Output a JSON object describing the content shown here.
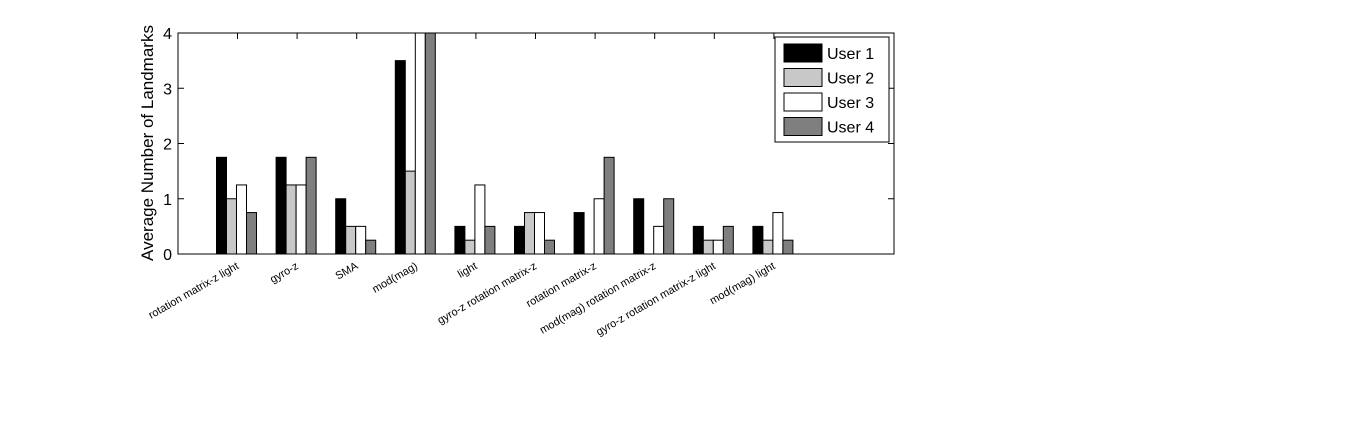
{
  "chart_data": {
    "type": "bar",
    "title": "",
    "xlabel": "",
    "ylabel": "Average Number of Landmarks",
    "ylim": [
      0,
      4
    ],
    "yticks": [
      "0",
      "1",
      "2",
      "3",
      "4"
    ],
    "grid": false,
    "legend_position": "top-right",
    "categories": [
      "rotation matrix-z  light",
      "gyro-z",
      "SMA",
      "mod(mag)",
      "light",
      "gyro-z  rotation matrix-z",
      "rotation matrix-z",
      "mod(mag)  rotation matrix-z",
      "gyro-z  rotation matrix-z  light",
      "mod(mag)  light"
    ],
    "series": [
      {
        "name": "User 1",
        "color": "#000000",
        "values": [
          1.75,
          1.75,
          1.0,
          3.5,
          0.5,
          0.5,
          0.75,
          1.0,
          0.5,
          0.5
        ]
      },
      {
        "name": "User 2",
        "color": "#c8c8c8",
        "values": [
          1.0,
          1.25,
          0.5,
          1.5,
          0.25,
          0.75,
          0.0,
          0.0,
          0.25,
          0.25
        ]
      },
      {
        "name": "User 3",
        "color": "#ffffff",
        "values": [
          1.25,
          1.25,
          0.5,
          4.0,
          1.25,
          0.75,
          1.0,
          0.5,
          0.25,
          0.75
        ]
      },
      {
        "name": "User 4",
        "color": "#7f7f7f",
        "values": [
          0.75,
          1.75,
          0.25,
          4.0,
          0.5,
          0.25,
          1.75,
          1.0,
          0.5,
          0.25
        ]
      }
    ]
  }
}
